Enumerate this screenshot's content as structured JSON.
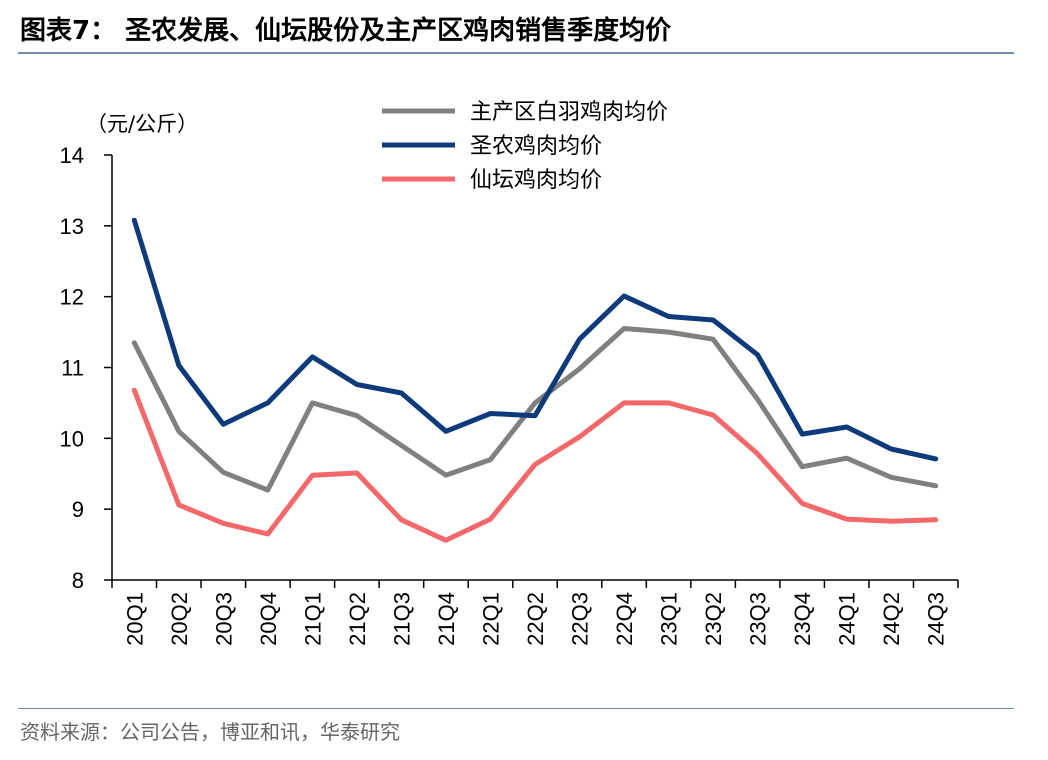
{
  "title": "图表7： 圣农发展、仙坛股份及主产区鸡肉销售季度均价",
  "source": "资料来源：公司公告，博亚和讯，华泰研究",
  "chart_data": {
    "type": "line",
    "title": "图表7： 圣农发展、仙坛股份及主产区鸡肉销售季度均价",
    "ylabel": "（元/公斤）",
    "xlabel": "",
    "ylim": [
      8,
      14
    ],
    "yticks": [
      8,
      9,
      10,
      11,
      12,
      13,
      14
    ],
    "grid": false,
    "legend_position": "top-center",
    "categories": [
      "20Q1",
      "20Q2",
      "20Q3",
      "20Q4",
      "21Q1",
      "21Q2",
      "21Q3",
      "21Q4",
      "22Q1",
      "22Q2",
      "22Q3",
      "22Q4",
      "23Q1",
      "23Q2",
      "23Q3",
      "23Q4",
      "24Q1",
      "24Q2",
      "24Q3"
    ],
    "series": [
      {
        "name": "主产区白羽鸡肉均价",
        "color": "#808080",
        "values": [
          11.35,
          10.1,
          9.52,
          9.27,
          10.5,
          10.32,
          9.9,
          9.48,
          9.7,
          10.5,
          10.98,
          11.55,
          11.5,
          11.4,
          10.55,
          9.6,
          9.72,
          9.45,
          9.33
        ]
      },
      {
        "name": "圣农鸡肉均价",
        "color": "#0d3a7a",
        "values": [
          13.08,
          11.03,
          10.2,
          10.5,
          11.15,
          10.76,
          10.64,
          10.1,
          10.35,
          10.32,
          11.4,
          12.01,
          11.72,
          11.67,
          11.18,
          10.06,
          10.16,
          9.85,
          9.71
        ]
      },
      {
        "name": "仙坛鸡肉均价",
        "color": "#f4686a",
        "values": [
          10.68,
          9.06,
          8.8,
          8.65,
          9.48,
          9.51,
          8.85,
          8.56,
          8.86,
          9.63,
          10.02,
          10.5,
          10.5,
          10.33,
          9.78,
          9.08,
          8.86,
          8.83,
          8.85
        ]
      }
    ]
  }
}
